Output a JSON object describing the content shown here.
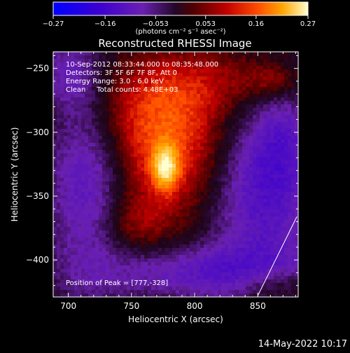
{
  "chart_data": {
    "type": "heatmap",
    "title": "Reconstructed RHESSI Image",
    "xlabel": "Heliocentric X (arcsec)",
    "ylabel": "Heliocentric Y (arcsec)",
    "xlim": [
      688,
      882
    ],
    "ylim": [
      -429,
      -237
    ],
    "x_ticks": [
      700,
      750,
      800,
      850
    ],
    "y_ticks": [
      -250,
      -300,
      -350,
      -400
    ],
    "grid": false,
    "colorbar": {
      "label": "(photons cm⁻² s⁻¹ asec⁻²)",
      "range": [
        -0.27,
        0.27
      ],
      "ticks": [
        -0.27,
        -0.16,
        -0.053,
        0.053,
        0.16,
        0.27
      ],
      "tick_labels": [
        "−0.27",
        "−0.16",
        "−0.053",
        "0.053",
        "0.16",
        "0.27"
      ],
      "colormap": [
        "#0000ff",
        "#4400c0",
        "#6a1fb0",
        "#2a0a3a",
        "#600000",
        "#c00000",
        "#ff4000",
        "#ffa000",
        "#ffffc0"
      ]
    },
    "annotations": [
      "10-Sep-2012 08:33:44.000 to 08:35:48.000",
      "Detectors: 3F 5F 6F 7F 8F, Att 0",
      "Energy Range: 3.0 - 6.0 keV",
      "Clean     Total counts: 4.48E+03"
    ],
    "peak_label": "Position of Peak = [777,-328]",
    "peak": [
      777,
      -328
    ],
    "limb_line": [
      [
        850,
        -428
      ],
      [
        881,
        -366
      ]
    ],
    "components": [
      {
        "x": 777,
        "y": -328,
        "sigma_x": 7,
        "sigma_y": 12,
        "amp": 0.17
      },
      {
        "x": 770,
        "y": -318,
        "sigma_x": 28,
        "sigma_y": 40,
        "amp": 0.09
      },
      {
        "x": 745,
        "y": -282,
        "sigma_x": 45,
        "sigma_y": 30,
        "amp": 0.06
      },
      {
        "x": 820,
        "y": -260,
        "sigma_x": 45,
        "sigma_y": 20,
        "amp": 0.06
      },
      {
        "x": 862,
        "y": -260,
        "sigma_x": 14,
        "sigma_y": 9,
        "amp": 0.06
      },
      {
        "x": 800,
        "y": -310,
        "sigma_x": 25,
        "sigma_y": 35,
        "amp": 0.05
      },
      {
        "x": 752,
        "y": -372,
        "sigma_x": 20,
        "sigma_y": 15,
        "amp": 0.05
      },
      {
        "x": 862,
        "y": -420,
        "sigma_x": 20,
        "sigma_y": 10,
        "amp": 0.07
      },
      {
        "x": 715,
        "y": -330,
        "sigma_x": 22,
        "sigma_y": 60,
        "amp": -0.11
      },
      {
        "x": 855,
        "y": -345,
        "sigma_x": 30,
        "sigma_y": 50,
        "amp": -0.12
      },
      {
        "x": 810,
        "y": -410,
        "sigma_x": 60,
        "sigma_y": 15,
        "amp": -0.1
      },
      {
        "x": 700,
        "y": -255,
        "sigma_x": 15,
        "sigma_y": 20,
        "amp": -0.07
      },
      {
        "x": 870,
        "y": -300,
        "sigma_x": 15,
        "sigma_y": 30,
        "amp": -0.05
      }
    ]
  },
  "footer_date": "14-May-2022 10:17"
}
